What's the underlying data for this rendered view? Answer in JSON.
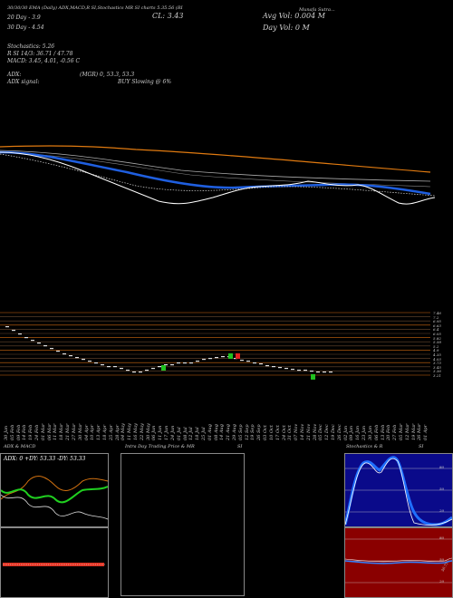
{
  "header": {
    "title_line": "Munafa Sutra...",
    "price_label": "CL: 3.43",
    "avg_vol": "Avg Vol: 0.004 M",
    "day_vol": "Day Vol: 0  M",
    "ma20": "20  Day - 3.9",
    "ma30": "30  Day - 4.54",
    "stochastics": "Stochastics: 5.26",
    "si_line": "R              SI 14/3: 36.71 / 47.78",
    "macd": "MACD: 3.45, 4.01, -0.56  C",
    "adx": "ADX:",
    "adx_val": "(MGR) 0, 53.3, 53.3",
    "adx_signal": "ADX  signal:",
    "buy_signal": "BUY Slowing @ 6%"
  },
  "price_levels": [
    "7.46",
    "7.2",
    "6.95",
    "6.63",
    "6.4",
    "6.05",
    "5.82",
    "5.58",
    "5.2",
    "4.9",
    "4.35",
    "4.03",
    "3.73",
    "3.45",
    "3.36",
    "3.21"
  ],
  "dates": [
    "30 Jan",
    "05 Feb",
    "09 Feb",
    "14 Feb",
    "19 Feb",
    "24 Feb",
    "01 Mar",
    "06 Mar",
    "11 Mar",
    "18 Mar",
    "21 Mar",
    "27 Mar",
    "30 Mar",
    "04 Apr",
    "10 Apr",
    "13 Apr",
    "18 Apr",
    "25 Apr",
    "28 Apr",
    "04 May",
    "11 May",
    "16 May",
    "22 May",
    "30 May",
    "06 Jun",
    "11 Jun",
    "17 Jun",
    "24 Jun",
    "01 Jul",
    "08 Jul",
    "12 Jul",
    "18 Jul",
    "25 Jul",
    "01 Aug",
    "08 Aug",
    "14 Aug",
    "21 Aug",
    "29 Aug",
    "05 Sep",
    "12 Sep",
    "19 Sep",
    "26 Sep",
    "03 Oct",
    "10 Oct",
    "17 Oct",
    "24 Oct",
    "31 Oct",
    "07 Nov",
    "14 Nov",
    "21 Nov",
    "28 Nov",
    "05 Dec",
    "12 Dec",
    "19 Dec",
    "26 Dec",
    "02 Jan",
    "09 Jan",
    "16 Jan",
    "23 Jan",
    "30 Jan",
    "06 Feb",
    "13 Feb",
    "20 Feb",
    "27 Feb",
    "05 Mar",
    "12 Mar",
    "19 Mar",
    "26 Mar",
    "01 Apr"
  ],
  "panels": {
    "adx_title": "ADX  & MACD",
    "adx_text": "ADX: 0  +DY: 53.33 -DY: 53.33",
    "intraday_title": "Intra  Day Trading Price  & MR",
    "si_label": "SI",
    "stoch_title": "Stochastics & R",
    "stoch_si": "SI",
    "stoch_levels": [
      "80",
      "50",
      "20"
    ],
    "rsi_levels": [
      "80",
      "50",
      "20"
    ],
    "rsi_tag": "36.71"
  }
}
